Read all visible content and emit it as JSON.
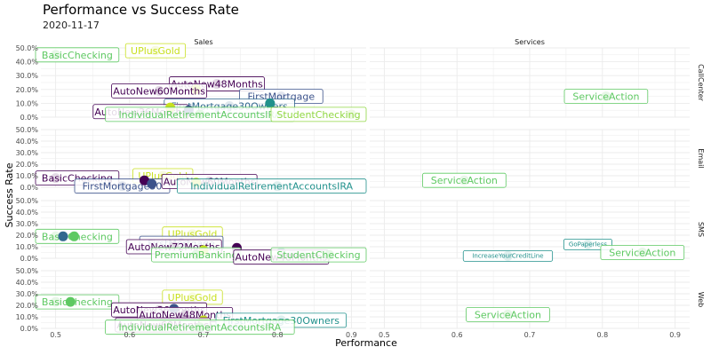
{
  "chart_data": {
    "type": "scatter",
    "title": "Performance vs Success Rate",
    "subtitle": "2020-11-17",
    "xlabel": "Performance",
    "ylabel": "Success Rate",
    "xlim": [
      0.48,
      0.92
    ],
    "ylim": [
      0,
      0.5
    ],
    "x_ticks": [
      "0.5",
      "0.6",
      "0.7",
      "0.8",
      "0.9"
    ],
    "x_tick_values": [
      0.5,
      0.6,
      0.7,
      0.8,
      0.9
    ],
    "y_ticks": [
      "0.0%",
      "10.0%",
      "20.0%",
      "30.0%",
      "40.0%",
      "50.0%"
    ],
    "y_tick_values": [
      0,
      0.1,
      0.2,
      0.3,
      0.4,
      0.5
    ],
    "columns": [
      "Sales",
      "Services"
    ],
    "rows": [
      "CallCenter",
      "Email",
      "SMS",
      "Web"
    ],
    "grid": true,
    "legend": "none",
    "panels": [
      {
        "row": 0,
        "col": 0,
        "points": [
          {
            "x": 0.5,
            "y": 0.45,
            "color": "#5ec962",
            "label": "BasicChecking"
          },
          {
            "x": 0.635,
            "y": 0.48,
            "color": "#c8e020",
            "label": "UPlusGold"
          },
          {
            "x": 0.718,
            "y": 0.24,
            "color": "#440154",
            "label": "AutoNew48Months"
          },
          {
            "x": 0.69,
            "y": 0.2,
            "color": "#c8e020",
            "label": ""
          },
          {
            "x": 0.64,
            "y": 0.19,
            "color": "#440154",
            "label": "AutoNew60Months"
          },
          {
            "x": 0.805,
            "y": 0.15,
            "color": "#3b528b",
            "label": "FirstMortgage"
          },
          {
            "x": 0.735,
            "y": 0.08,
            "color": "#31688e",
            "label": "FirstMortgage30Owners"
          },
          {
            "x": 0.79,
            "y": 0.1,
            "color": "#21918c",
            "label": ""
          },
          {
            "x": 0.615,
            "y": 0.04,
            "color": "#440154",
            "label": "AutoNew36Months"
          },
          {
            "x": 0.655,
            "y": 0.07,
            "color": "#c8e020",
            "label": ""
          },
          {
            "x": 0.68,
            "y": 0.05,
            "color": "#3b528b",
            "label": ""
          },
          {
            "x": 0.695,
            "y": 0.02,
            "color": "#5ec962",
            "label": "IndividualRetirementAccountsIRA"
          },
          {
            "x": 0.9,
            "y": 0.02,
            "color": "#90d743",
            "label": "StudentChecking"
          }
        ]
      },
      {
        "row": 0,
        "col": 1,
        "points": [
          {
            "x": 0.805,
            "y": 0.15,
            "color": "#5ec962",
            "label": "ServiceAction"
          }
        ]
      },
      {
        "row": 1,
        "col": 0,
        "points": [
          {
            "x": 0.5,
            "y": 0.08,
            "color": "#440154",
            "label": "BasicChecking"
          },
          {
            "x": 0.645,
            "y": 0.1,
            "color": "#c8e020",
            "label": "UPlusGold"
          },
          {
            "x": 0.59,
            "y": 0.01,
            "color": "#3b528b",
            "label": "FirstMortgage30"
          },
          {
            "x": 0.62,
            "y": 0.06,
            "color": "#440154",
            "label": ""
          },
          {
            "x": 0.63,
            "y": 0.03,
            "color": "#3b528b",
            "label": ""
          },
          {
            "x": 0.67,
            "y": 0.04,
            "color": "#5ec962",
            "label": ""
          },
          {
            "x": 0.708,
            "y": 0.05,
            "color": "#440154",
            "label": "AutoNew60Months"
          },
          {
            "x": 0.69,
            "y": 0.04,
            "color": "#c8e020",
            "label": ""
          },
          {
            "x": 0.8,
            "y": 0.01,
            "color": "#21918c",
            "label": "IndividualRetirementAccountsIRA"
          }
        ]
      },
      {
        "row": 1,
        "col": 1,
        "points": [
          {
            "x": 0.61,
            "y": 0.06,
            "color": "#5ec962",
            "label": "ServiceAction"
          }
        ]
      },
      {
        "row": 2,
        "col": 0,
        "points": [
          {
            "x": 0.5,
            "y": 0.19,
            "color": "#5ec962",
            "label": "BasicChecking"
          },
          {
            "x": 0.51,
            "y": 0.19,
            "color": "#31688e",
            "label": ""
          },
          {
            "x": 0.525,
            "y": 0.19,
            "color": "#5ec962",
            "label": ""
          },
          {
            "x": 0.685,
            "y": 0.21,
            "color": "#c8e020",
            "label": "UPlusGold"
          },
          {
            "x": 0.67,
            "y": 0.13,
            "color": "#3b528b",
            "label": "FirstMortgage"
          },
          {
            "x": 0.66,
            "y": 0.1,
            "color": "#440154",
            "label": "AutoNew72Months"
          },
          {
            "x": 0.745,
            "y": 0.09,
            "color": "#440154",
            "label": ""
          },
          {
            "x": 0.7,
            "y": 0.07,
            "color": "#c8e020",
            "label": ""
          },
          {
            "x": 0.69,
            "y": 0.03,
            "color": "#5ec962",
            "label": "PremiumBanking"
          },
          {
            "x": 0.805,
            "y": 0.05,
            "color": "#21918c",
            "label": ""
          },
          {
            "x": 0.82,
            "y": 0.03,
            "color": "#3b528b",
            "label": ""
          },
          {
            "x": 0.835,
            "y": 0.03,
            "color": "#3b528b",
            "label": ""
          },
          {
            "x": 0.805,
            "y": 0.01,
            "color": "#440154",
            "label": "AutoNew48Months"
          },
          {
            "x": 0.87,
            "y": 0.03,
            "color": "#5ec962",
            "label": "StudentChecking"
          }
        ]
      },
      {
        "row": 2,
        "col": 1,
        "points": [
          {
            "x": 0.78,
            "y": 0.12,
            "color": "#21918c",
            "label": "GoPaperless"
          },
          {
            "x": 0.67,
            "y": 0.02,
            "color": "#21918c",
            "label": "IncreaseYourCreditLine"
          },
          {
            "x": 0.855,
            "y": 0.05,
            "color": "#5ec962",
            "label": "ServiceAction"
          }
        ]
      },
      {
        "row": 3,
        "col": 0,
        "points": [
          {
            "x": 0.5,
            "y": 0.23,
            "color": "#5ec962",
            "label": "BasicChecking"
          },
          {
            "x": 0.52,
            "y": 0.23,
            "color": "#5ec962",
            "label": ""
          },
          {
            "x": 0.685,
            "y": 0.27,
            "color": "#c8e020",
            "label": "UPlusGold"
          },
          {
            "x": 0.64,
            "y": 0.16,
            "color": "#440154",
            "label": "AutoNew36Months"
          },
          {
            "x": 0.66,
            "y": 0.17,
            "color": "#3b528b",
            "label": ""
          },
          {
            "x": 0.675,
            "y": 0.12,
            "color": "#440154",
            "label": "AutoNew48Months"
          },
          {
            "x": 0.7,
            "y": 0.07,
            "color": "#c8e020",
            "label": ""
          },
          {
            "x": 0.705,
            "y": 0.02,
            "color": "#5ec962",
            "label": ""
          },
          {
            "x": 0.645,
            "y": 0.03,
            "color": "#440154",
            "label": "AutoNew60Months"
          },
          {
            "x": 0.735,
            "y": 0.04,
            "color": "#31688e",
            "label": ""
          },
          {
            "x": 0.748,
            "y": 0.04,
            "color": "#31688e",
            "label": ""
          },
          {
            "x": 0.805,
            "y": 0.07,
            "color": "#21918c",
            "label": "FirstMortgage30Owners"
          },
          {
            "x": 0.695,
            "y": 0.01,
            "color": "#5ec962",
            "label": "IndividualRetirementAccountsIRA"
          }
        ]
      },
      {
        "row": 3,
        "col": 1,
        "points": [
          {
            "x": 0.67,
            "y": 0.12,
            "color": "#5ec962",
            "label": "ServiceAction"
          }
        ]
      }
    ]
  }
}
